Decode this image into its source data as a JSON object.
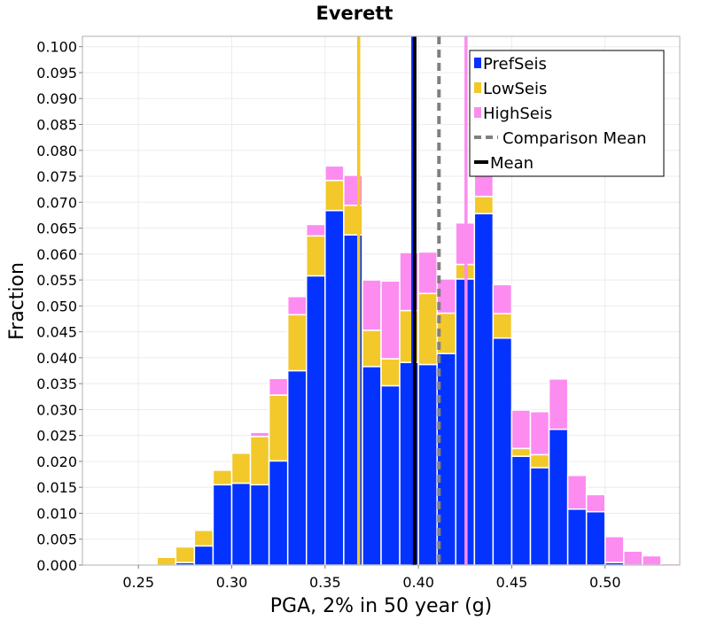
{
  "chart_data": {
    "type": "bar",
    "subtype": "stacked-histogram",
    "title": "Everett",
    "xlabel": "PGA, 2% in 50 year (g)",
    "ylabel": "Fraction",
    "xlim": [
      0.22,
      0.54
    ],
    "ylim": [
      0,
      0.102
    ],
    "bin_width": 0.01,
    "x_ticks": [
      "0.25",
      "0.30",
      "0.35",
      "0.40",
      "0.45",
      "0.50"
    ],
    "x_tick_values": [
      0.25,
      0.3,
      0.35,
      0.4,
      0.45,
      0.5
    ],
    "y_ticks": [
      "0.000",
      "0.005",
      "0.010",
      "0.015",
      "0.020",
      "0.025",
      "0.030",
      "0.035",
      "0.040",
      "0.045",
      "0.050",
      "0.055",
      "0.060",
      "0.065",
      "0.070",
      "0.075",
      "0.080",
      "0.085",
      "0.090",
      "0.095",
      "0.100"
    ],
    "y_tick_values": [
      0,
      0.005,
      0.01,
      0.015,
      0.02,
      0.025,
      0.03,
      0.035,
      0.04,
      0.045,
      0.05,
      0.055,
      0.06,
      0.065,
      0.07,
      0.075,
      0.08,
      0.085,
      0.09,
      0.095,
      0.1
    ],
    "bins": [
      0.265,
      0.275,
      0.285,
      0.295,
      0.305,
      0.315,
      0.325,
      0.335,
      0.345,
      0.355,
      0.365,
      0.375,
      0.385,
      0.395,
      0.405,
      0.415,
      0.425,
      0.435,
      0.445,
      0.455,
      0.465,
      0.475,
      0.485,
      0.495,
      0.505,
      0.515,
      0.525,
      0.535
    ],
    "series": [
      {
        "name": "PrefSeis",
        "color": "#0433ff",
        "values": [
          0,
          0.0005,
          0.0037,
          0.0155,
          0.0158,
          0.0155,
          0.0201,
          0.0375,
          0.0558,
          0.0684,
          0.0637,
          0.0383,
          0.0346,
          0.0391,
          0.0387,
          0.0408,
          0.0552,
          0.0678,
          0.0438,
          0.021,
          0.0188,
          0.0262,
          0.0108,
          0.0103,
          0.0005,
          0,
          0,
          0
        ]
      },
      {
        "name": "LowSeis",
        "color": "#f2c82a",
        "values": [
          0.0015,
          0.003,
          0.003,
          0.0028,
          0.0058,
          0.0093,
          0.0127,
          0.0108,
          0.0077,
          0.0058,
          0.0057,
          0.007,
          0.0052,
          0.01,
          0.0137,
          0.0078,
          0.0028,
          0.0033,
          0.0047,
          0.0015,
          0.0025,
          0,
          0,
          0,
          0,
          0,
          0,
          0
        ]
      },
      {
        "name": "HighSeis",
        "color": "#fc8cf0",
        "values": [
          0,
          0,
          0,
          0,
          0.0002,
          0.0008,
          0.0032,
          0.0035,
          0.0022,
          0.0028,
          0.0058,
          0.0097,
          0.015,
          0.0112,
          0.008,
          0.0066,
          0.008,
          0.0073,
          0.0056,
          0.0074,
          0.0083,
          0.0097,
          0.0065,
          0.0033,
          0.005,
          0.0027,
          0.0018,
          0.0003
        ]
      }
    ],
    "vertical_lines": [
      {
        "name": "LowSeis mean",
        "x": 0.368,
        "color": "#f2c82a",
        "style": "solid"
      },
      {
        "name": "HighSeis mean",
        "x": 0.4255,
        "color": "#fc8cf0",
        "style": "solid"
      },
      {
        "name": "PrefSeis mean",
        "x": 0.397,
        "color": "#0433ff",
        "style": "solid"
      },
      {
        "name": "Comparison Mean",
        "x": 0.411,
        "color": "#808080",
        "style": "dashed"
      },
      {
        "name": "Mean",
        "x": 0.398,
        "color": "#000000",
        "style": "solid"
      }
    ],
    "legend": {
      "position": "top-right",
      "entries": [
        {
          "label": "PrefSeis",
          "kind": "box",
          "color": "#0433ff"
        },
        {
          "label": "LowSeis",
          "kind": "box",
          "color": "#f2c82a"
        },
        {
          "label": "HighSeis",
          "kind": "box",
          "color": "#fc8cf0"
        },
        {
          "label": "Comparison Mean",
          "kind": "dashed-line",
          "color": "#808080"
        },
        {
          "label": "Mean",
          "kind": "line",
          "color": "#000000"
        }
      ]
    },
    "grid": true
  }
}
